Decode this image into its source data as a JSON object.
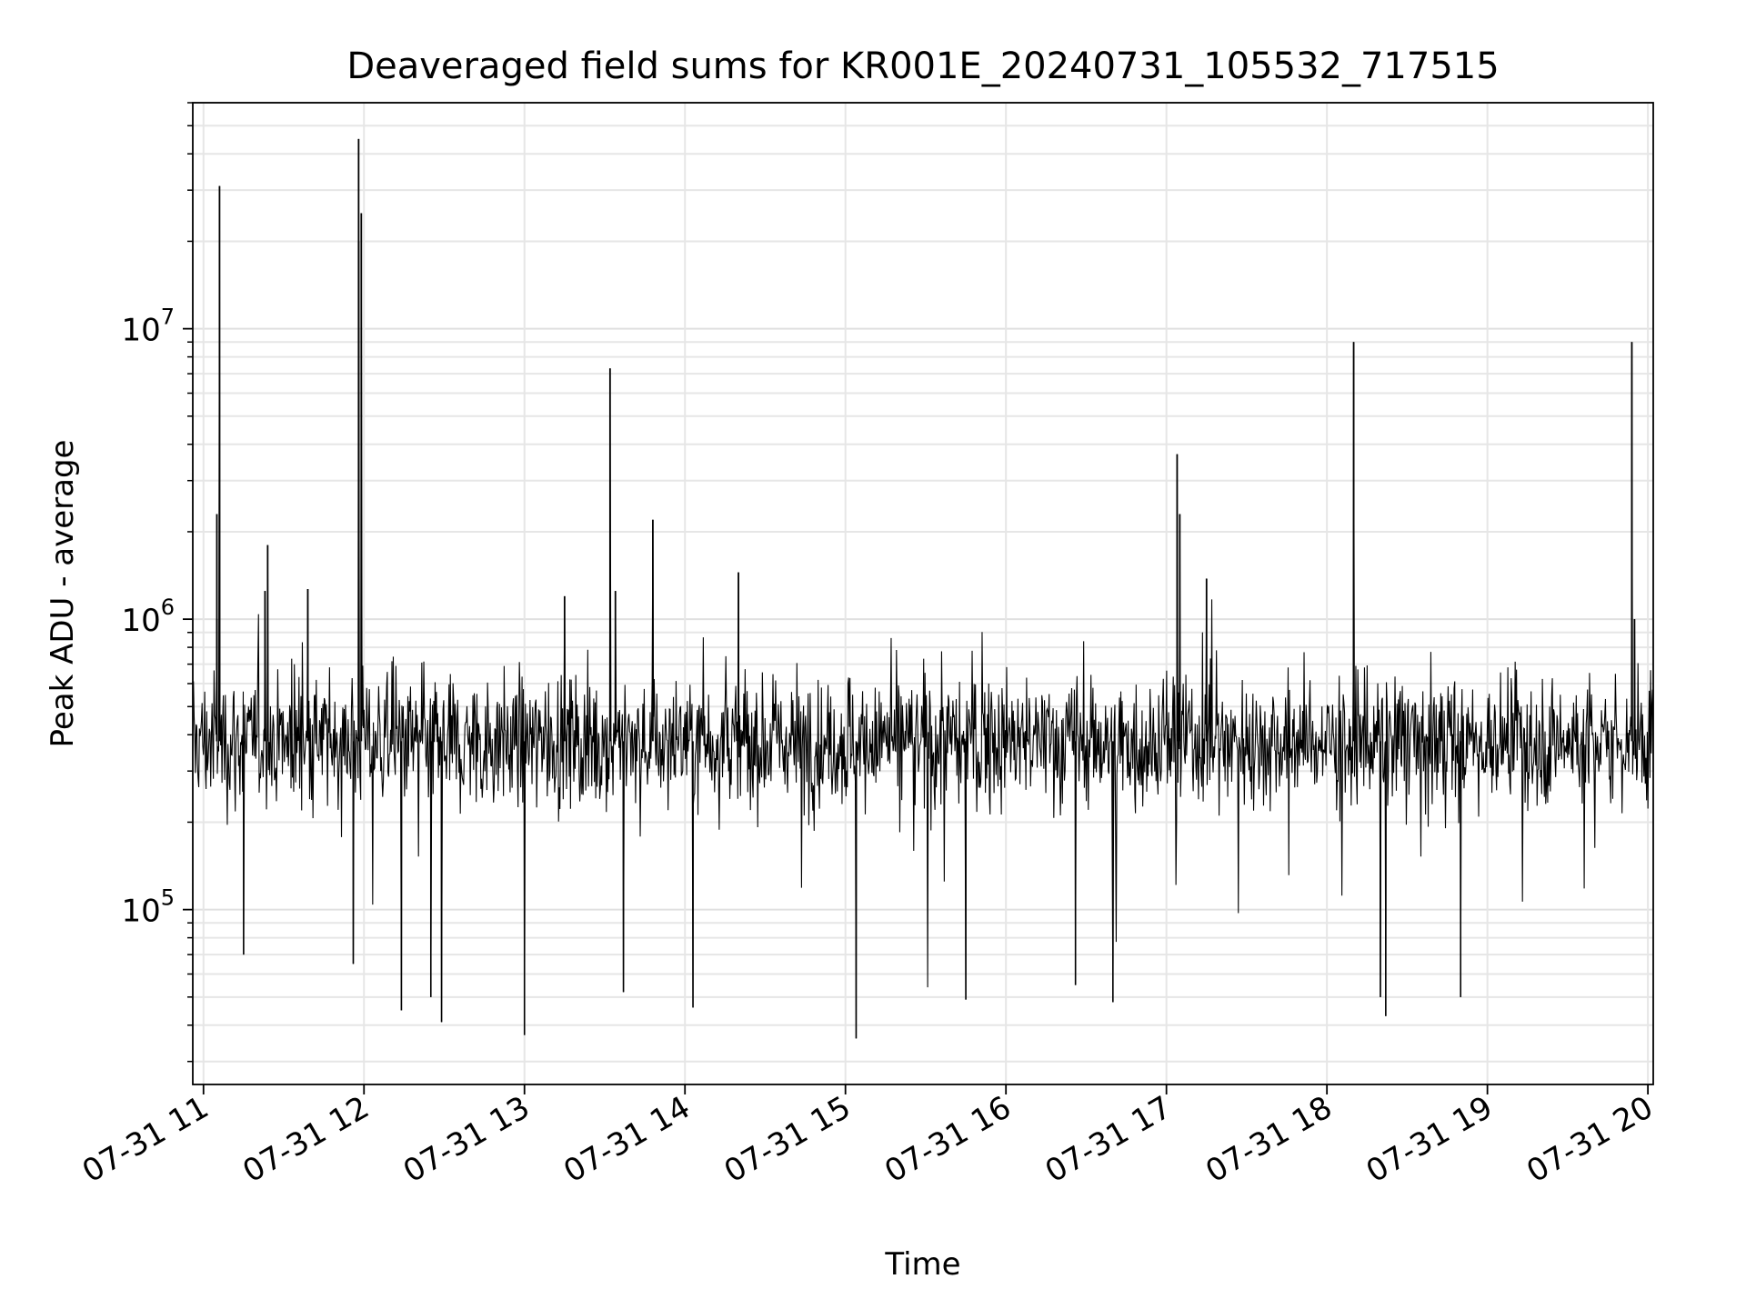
{
  "chart_data": {
    "type": "line",
    "title": "Deaveraged field sums for KR001E_20240731_105532_717515",
    "xlabel": "Time",
    "ylabel": "Peak ADU - average",
    "yscale": "log",
    "grid": true,
    "grid_minor": true,
    "xlim": [
      "2024-07-31 10:56",
      "2024-07-31 20:02"
    ],
    "ylim": [
      25000,
      60000000
    ],
    "xticks": [
      {
        "value": "2024-07-31 11:00",
        "label": "07-31 11"
      },
      {
        "value": "2024-07-31 12:00",
        "label": "07-31 12"
      },
      {
        "value": "2024-07-31 13:00",
        "label": "07-31 13"
      },
      {
        "value": "2024-07-31 14:00",
        "label": "07-31 14"
      },
      {
        "value": "2024-07-31 15:00",
        "label": "07-31 15"
      },
      {
        "value": "2024-07-31 16:00",
        "label": "07-31 16"
      },
      {
        "value": "2024-07-31 17:00",
        "label": "07-31 17"
      },
      {
        "value": "2024-07-31 18:00",
        "label": "07-31 18"
      },
      {
        "value": "2024-07-31 19:00",
        "label": "07-31 19"
      },
      {
        "value": "2024-07-31 20:00",
        "label": "07-31 20"
      }
    ],
    "yticks": [
      {
        "value": 100000,
        "base": "10",
        "exp": "5"
      },
      {
        "value": 1000000,
        "base": "10",
        "exp": "6"
      },
      {
        "value": 10000000,
        "base": "10",
        "exp": "7"
      }
    ],
    "series": [
      {
        "color": "#000000",
        "baseline": 380000,
        "spikes": [
          {
            "x": "2024-07-31 11:06",
            "y": 31000000
          },
          {
            "x": "2024-07-31 11:05",
            "y": 2300000
          },
          {
            "x": "2024-07-31 11:05",
            "y": 1000000
          },
          {
            "x": "2024-07-31 11:24",
            "y": 1800000
          },
          {
            "x": "2024-07-31 11:23",
            "y": 1250000
          },
          {
            "x": "2024-07-31 11:39",
            "y": 1270000
          },
          {
            "x": "2024-07-31 11:58",
            "y": 20000000
          },
          {
            "x": "2024-07-31 11:58",
            "y": 45000000
          },
          {
            "x": "2024-07-31 11:59",
            "y": 25000000
          },
          {
            "x": "2024-07-31 13:15",
            "y": 1200000
          },
          {
            "x": "2024-07-31 13:32",
            "y": 7300000
          },
          {
            "x": "2024-07-31 13:34",
            "y": 1250000
          },
          {
            "x": "2024-07-31 13:48",
            "y": 2200000
          },
          {
            "x": "2024-07-31 14:20",
            "y": 1450000
          },
          {
            "x": "2024-07-31 17:04",
            "y": 3700000
          },
          {
            "x": "2024-07-31 17:05",
            "y": 2300000
          },
          {
            "x": "2024-07-31 17:15",
            "y": 1380000
          },
          {
            "x": "2024-07-31 18:10",
            "y": 9000000
          },
          {
            "x": "2024-07-31 19:54",
            "y": 9000000
          },
          {
            "x": "2024-07-31 19:55",
            "y": 1000000
          }
        ],
        "dips": [
          {
            "x": "2024-07-31 11:15",
            "y": 70000
          },
          {
            "x": "2024-07-31 11:56",
            "y": 65000
          },
          {
            "x": "2024-07-31 12:14",
            "y": 45000
          },
          {
            "x": "2024-07-31 12:25",
            "y": 50000
          },
          {
            "x": "2024-07-31 12:29",
            "y": 41000
          },
          {
            "x": "2024-07-31 13:00",
            "y": 37000
          },
          {
            "x": "2024-07-31 13:37",
            "y": 52000
          },
          {
            "x": "2024-07-31 14:03",
            "y": 46000
          },
          {
            "x": "2024-07-31 15:04",
            "y": 36000
          },
          {
            "x": "2024-07-31 15:45",
            "y": 49000
          },
          {
            "x": "2024-07-31 16:26",
            "y": 55000
          },
          {
            "x": "2024-07-31 16:40",
            "y": 48000
          },
          {
            "x": "2024-07-31 18:22",
            "y": 43000
          },
          {
            "x": "2024-07-31 18:20",
            "y": 50000
          },
          {
            "x": "2024-07-31 18:50",
            "y": 50000
          }
        ]
      }
    ]
  }
}
